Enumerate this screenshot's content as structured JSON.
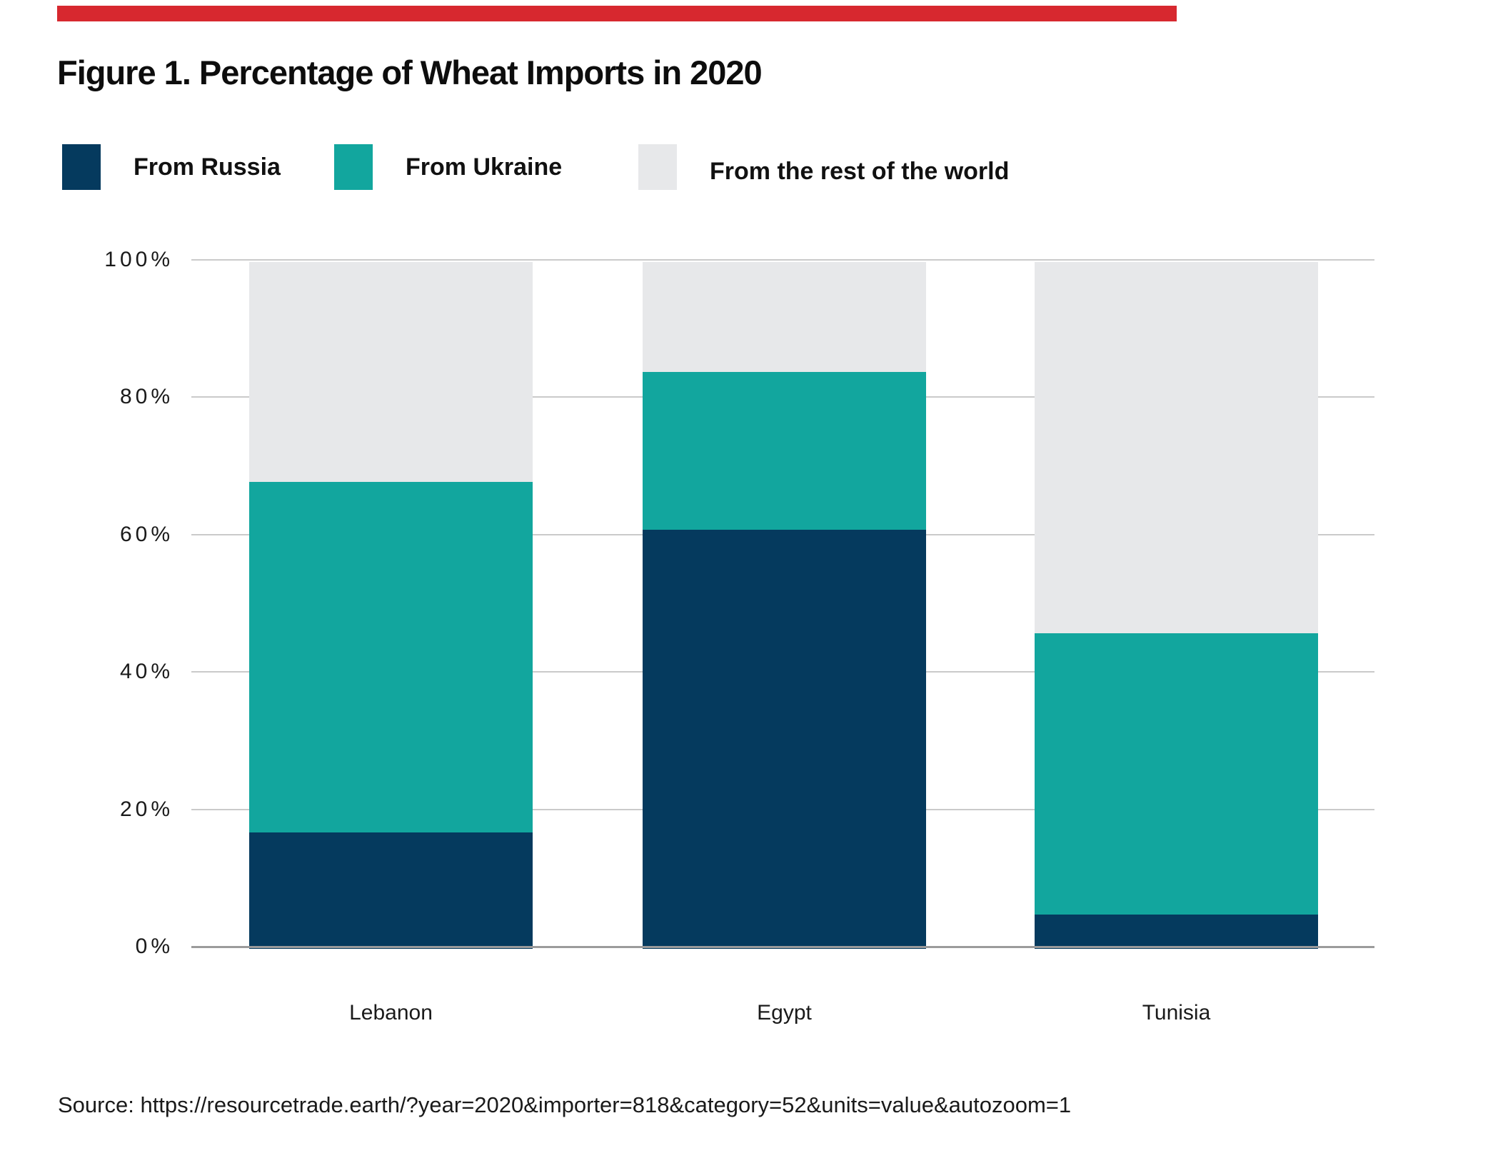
{
  "page": {
    "background": "#ffffff",
    "accent_bar_color": "#d7282f",
    "colors": {
      "gridline": "#cacaca",
      "axis_line": "#9b9b9b",
      "text": "#1a1a1a",
      "title_text": "#0d0d0d"
    }
  },
  "title": "Figure 1. Percentage of Wheat Imports in 2020",
  "legend": {
    "items": [
      {
        "name": "russia",
        "label": "From Russia",
        "color": "#053a5e"
      },
      {
        "name": "ukraine",
        "label": "From Ukraine",
        "color": "#12a69e"
      },
      {
        "name": "rest-of-world",
        "label": "From the rest of the world",
        "color": "#e7e8ea"
      }
    ]
  },
  "chart_data": {
    "type": "bar",
    "stacked": true,
    "percent_stacked": true,
    "title": "Figure 1. Percentage of Wheat Imports in 2020",
    "categories": [
      "Lebanon",
      "Egypt",
      "Tunisia"
    ],
    "series": [
      {
        "name": "From Russia",
        "color": "#053a5e",
        "values": [
          17,
          61,
          5
        ]
      },
      {
        "name": "From Ukraine",
        "color": "#12a69e",
        "values": [
          51,
          23,
          41
        ]
      },
      {
        "name": "From the rest of the world",
        "color": "#e7e8ea",
        "values": [
          32,
          16,
          54
        ]
      }
    ],
    "xlabel": "",
    "ylabel": "",
    "ylim": [
      0,
      100
    ],
    "ytick_labels": [
      "0%",
      "20%",
      "40%",
      "60%",
      "80%",
      "100%"
    ],
    "ytick_values": [
      0,
      20,
      40,
      60,
      80,
      100
    ],
    "grid": true,
    "legend_position": "top"
  },
  "source": "Source: https://resourcetrade.earth/?year=2020&importer=818&category=52&units=value&autozoom=1"
}
